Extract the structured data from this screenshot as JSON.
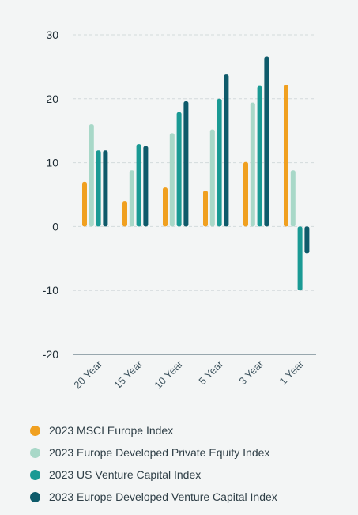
{
  "chart_data": {
    "type": "bar",
    "categories": [
      "20 Year",
      "15 Year",
      "10 Year",
      "5 Year",
      "3 Year",
      "1 Year"
    ],
    "series": [
      {
        "name": "2023 MSCI Europe Index",
        "color": "#f0a020",
        "values": [
          7.0,
          4.0,
          6.1,
          5.6,
          10.1,
          22.2
        ]
      },
      {
        "name": "2023 Europe Developed Private Equity Index",
        "color": "#a8d8c8",
        "values": [
          16.0,
          8.8,
          14.6,
          15.2,
          19.4,
          8.8
        ]
      },
      {
        "name": "2023 US Venture Capital Index",
        "color": "#1a9a94",
        "values": [
          11.9,
          12.9,
          17.9,
          20.0,
          22.0,
          -10.0
        ]
      },
      {
        "name": "2023 Europe Developed Venture Capital Index",
        "color": "#0e5a6a",
        "values": [
          11.9,
          12.6,
          19.6,
          23.8,
          26.6,
          -4.2
        ]
      }
    ],
    "yticks": [
      30,
      20,
      10,
      0,
      -10,
      -20
    ],
    "ylim": [
      -20,
      30
    ],
    "grid": true,
    "legend_position": "bottom"
  }
}
